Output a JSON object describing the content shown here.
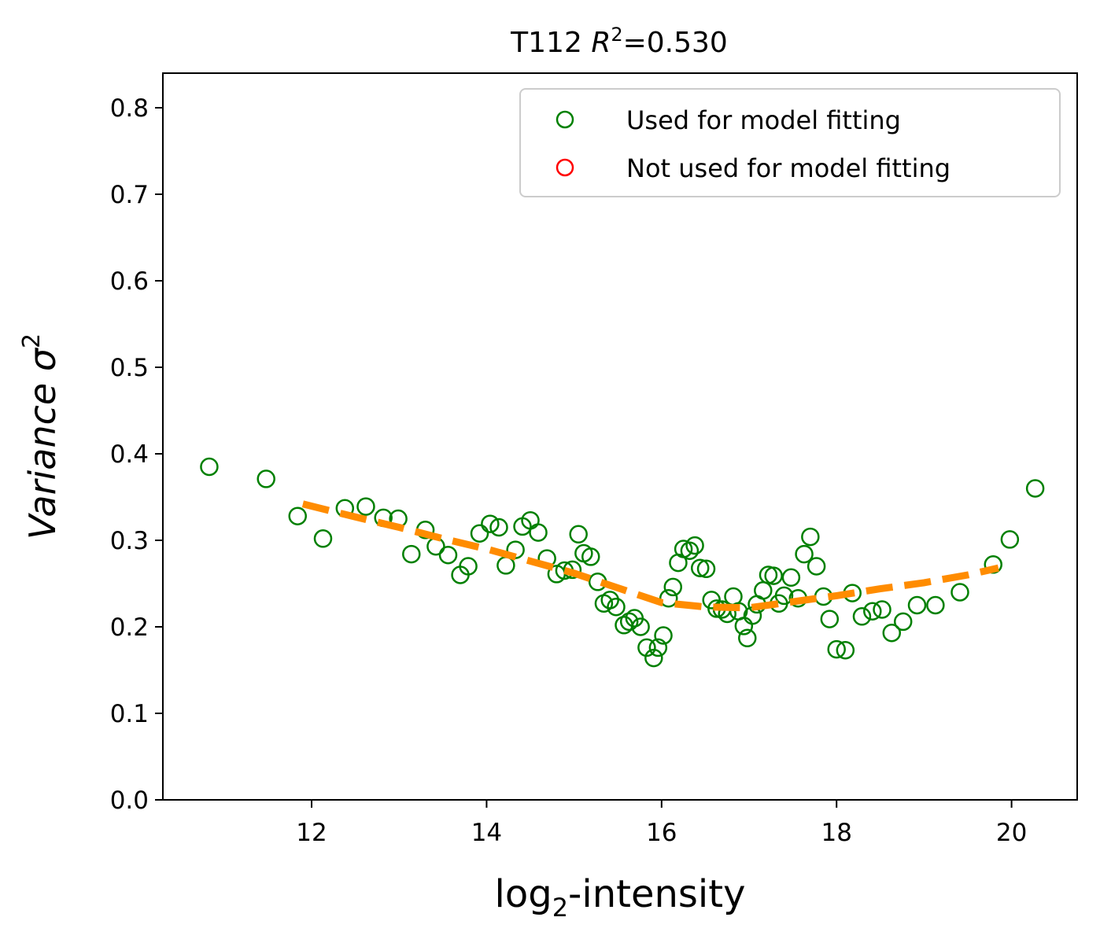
{
  "chart_data": {
    "type": "scatter",
    "title_prefix": "T112 ",
    "title_r2_symbol": "R",
    "title_r2_exp": "2",
    "title_r2_value": "=0.530",
    "xlabel_main": "log",
    "xlabel_sub": "2",
    "xlabel_rest": "-intensity",
    "ylabel_main": "Variance σ",
    "ylabel_sup": "2",
    "xlim": [
      10.3,
      20.75
    ],
    "ylim": [
      0.0,
      0.84
    ],
    "x_ticks": [
      12,
      14,
      16,
      18,
      20
    ],
    "x_tick_labels": [
      "12",
      "14",
      "16",
      "18",
      "20"
    ],
    "y_ticks": [
      0.0,
      0.1,
      0.2,
      0.3,
      0.4,
      0.5,
      0.6,
      0.7,
      0.8
    ],
    "y_tick_labels": [
      "0.0",
      "0.1",
      "0.2",
      "0.3",
      "0.4",
      "0.5",
      "0.6",
      "0.7",
      "0.8"
    ],
    "grid": false,
    "legend_position": "top-right",
    "legend": [
      {
        "label": "Used for model fitting",
        "color": "#008000"
      },
      {
        "label": "Not used for model fitting",
        "color": "#ff0000"
      }
    ],
    "series": [
      {
        "name": "Used for model fitting",
        "kind": "scatter",
        "marker": "open-circle",
        "color": "#008000",
        "points": [
          [
            10.83,
            0.385
          ],
          [
            11.48,
            0.371
          ],
          [
            11.84,
            0.328
          ],
          [
            12.13,
            0.302
          ],
          [
            12.38,
            0.337
          ],
          [
            12.62,
            0.339
          ],
          [
            12.82,
            0.326
          ],
          [
            12.99,
            0.325
          ],
          [
            13.14,
            0.284
          ],
          [
            13.3,
            0.312
          ],
          [
            13.42,
            0.293
          ],
          [
            13.56,
            0.283
          ],
          [
            13.7,
            0.26
          ],
          [
            13.79,
            0.27
          ],
          [
            13.92,
            0.308
          ],
          [
            14.04,
            0.319
          ],
          [
            14.14,
            0.315
          ],
          [
            14.22,
            0.271
          ],
          [
            14.33,
            0.289
          ],
          [
            14.41,
            0.316
          ],
          [
            14.5,
            0.323
          ],
          [
            14.59,
            0.309
          ],
          [
            14.69,
            0.279
          ],
          [
            14.8,
            0.261
          ],
          [
            14.89,
            0.265
          ],
          [
            14.98,
            0.266
          ],
          [
            15.05,
            0.307
          ],
          [
            15.11,
            0.285
          ],
          [
            15.19,
            0.281
          ],
          [
            15.27,
            0.252
          ],
          [
            15.34,
            0.227
          ],
          [
            15.41,
            0.231
          ],
          [
            15.48,
            0.223
          ],
          [
            15.57,
            0.202
          ],
          [
            15.63,
            0.206
          ],
          [
            15.69,
            0.21
          ],
          [
            15.76,
            0.2
          ],
          [
            15.83,
            0.176
          ],
          [
            15.91,
            0.164
          ],
          [
            15.96,
            0.176
          ],
          [
            16.02,
            0.19
          ],
          [
            16.08,
            0.233
          ],
          [
            16.13,
            0.246
          ],
          [
            16.19,
            0.274
          ],
          [
            16.25,
            0.29
          ],
          [
            16.32,
            0.288
          ],
          [
            16.38,
            0.294
          ],
          [
            16.44,
            0.268
          ],
          [
            16.51,
            0.267
          ],
          [
            16.57,
            0.231
          ],
          [
            16.63,
            0.221
          ],
          [
            16.69,
            0.22
          ],
          [
            16.75,
            0.215
          ],
          [
            16.82,
            0.235
          ],
          [
            16.88,
            0.218
          ],
          [
            16.94,
            0.201
          ],
          [
            16.98,
            0.187
          ],
          [
            17.04,
            0.213
          ],
          [
            17.09,
            0.226
          ],
          [
            17.16,
            0.242
          ],
          [
            17.22,
            0.26
          ],
          [
            17.28,
            0.259
          ],
          [
            17.34,
            0.227
          ],
          [
            17.4,
            0.236
          ],
          [
            17.48,
            0.257
          ],
          [
            17.56,
            0.233
          ],
          [
            17.63,
            0.284
          ],
          [
            17.7,
            0.304
          ],
          [
            17.77,
            0.27
          ],
          [
            17.85,
            0.235
          ],
          [
            17.92,
            0.209
          ],
          [
            18.0,
            0.174
          ],
          [
            18.1,
            0.173
          ],
          [
            18.18,
            0.239
          ],
          [
            18.29,
            0.212
          ],
          [
            18.41,
            0.218
          ],
          [
            18.52,
            0.22
          ],
          [
            18.63,
            0.193
          ],
          [
            18.76,
            0.206
          ],
          [
            18.92,
            0.225
          ],
          [
            19.13,
            0.225
          ],
          [
            19.41,
            0.24
          ],
          [
            19.79,
            0.272
          ],
          [
            19.98,
            0.301
          ],
          [
            20.27,
            0.36
          ]
        ]
      },
      {
        "name": "fit",
        "kind": "line",
        "style": "dashed",
        "color": "#ff8c00",
        "points": [
          [
            11.9,
            0.342
          ],
          [
            12.5,
            0.327
          ],
          [
            13.0,
            0.315
          ],
          [
            13.5,
            0.302
          ],
          [
            14.0,
            0.29
          ],
          [
            14.5,
            0.276
          ],
          [
            15.0,
            0.262
          ],
          [
            15.5,
            0.245
          ],
          [
            16.0,
            0.228
          ],
          [
            16.5,
            0.223
          ],
          [
            17.0,
            0.222
          ],
          [
            17.5,
            0.229
          ],
          [
            18.0,
            0.236
          ],
          [
            18.5,
            0.244
          ],
          [
            19.0,
            0.251
          ],
          [
            19.5,
            0.26
          ],
          [
            19.85,
            0.268
          ]
        ]
      }
    ]
  }
}
